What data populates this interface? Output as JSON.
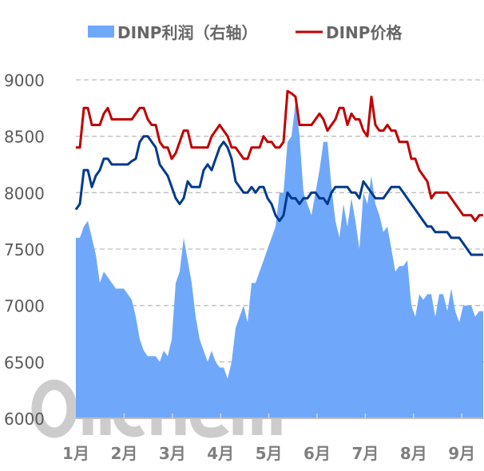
{
  "chart_data": {
    "type": "line",
    "title": "",
    "watermark": "oilchem",
    "legend": {
      "placement": "top-center",
      "entries": [
        {
          "label": "DINP利润（右轴）",
          "type": "area",
          "color": "#6FA8FA"
        },
        {
          "label": "DINP价格",
          "type": "line",
          "color": "#C00000"
        }
      ]
    },
    "xlabel": "",
    "ylabel": "",
    "x_tick_labels": [
      "1月",
      "2月",
      "3月",
      "4月",
      "5月",
      "6月",
      "7月",
      "8月",
      "9月"
    ],
    "x_range_months": [
      1,
      9.45
    ],
    "y_tick_labels": [
      "9000",
      "8500",
      "8000",
      "7500",
      "7000",
      "6500",
      "6000"
    ],
    "ylim": [
      6000,
      9000
    ],
    "grid": "horizontal-dashed",
    "right_axis_visible": false,
    "series": [
      {
        "name": "DINP利润（右轴）",
        "type": "area",
        "color": "#6FA8FA",
        "note_values_on_left_scale": true,
        "values": [
          7600,
          7600,
          7700,
          7750,
          7600,
          7450,
          7200,
          7300,
          7250,
          7200,
          7150,
          7150,
          7150,
          7100,
          7050,
          6900,
          6700,
          6600,
          6550,
          6550,
          6550,
          6500,
          6600,
          6550,
          6700,
          7200,
          7300,
          7600,
          7400,
          7200,
          6900,
          6700,
          6600,
          6500,
          6600,
          6500,
          6450,
          6450,
          6350,
          6500,
          6800,
          6900,
          7000,
          6850,
          7200,
          7200,
          7300,
          7400,
          7500,
          7600,
          7700,
          8000,
          8000,
          8450,
          8500,
          8800,
          8500,
          8000,
          7900,
          7800,
          8000,
          8200,
          8450,
          8450,
          8050,
          7750,
          7600,
          7900,
          7700,
          7950,
          7750,
          7500,
          8000,
          7900,
          8150,
          7900,
          7800,
          7650,
          7700,
          7500,
          7300,
          7350,
          7350,
          7400,
          7000,
          6900,
          7100,
          7050,
          7100,
          7100,
          6900,
          7100,
          7100,
          6950,
          7150,
          6950,
          6850,
          7000,
          7000,
          7000,
          6900,
          6950,
          6950
        ]
      },
      {
        "name": "DINP价格",
        "type": "line",
        "color": "#C00000",
        "values": [
          8400,
          8400,
          8750,
          8750,
          8600,
          8600,
          8600,
          8700,
          8750,
          8650,
          8650,
          8650,
          8650,
          8650,
          8650,
          8700,
          8750,
          8750,
          8650,
          8600,
          8600,
          8450,
          8400,
          8400,
          8300,
          8350,
          8450,
          8550,
          8550,
          8400,
          8400,
          8400,
          8400,
          8400,
          8500,
          8550,
          8600,
          8550,
          8500,
          8400,
          8400,
          8350,
          8300,
          8300,
          8400,
          8400,
          8400,
          8500,
          8450,
          8450,
          8400,
          8400,
          8450,
          8900,
          8880,
          8850,
          8600,
          8600,
          8600,
          8600,
          8650,
          8700,
          8650,
          8550,
          8600,
          8650,
          8750,
          8750,
          8600,
          8700,
          8650,
          8650,
          8550,
          8500,
          8850,
          8600,
          8550,
          8550,
          8600,
          8550,
          8550,
          8450,
          8450,
          8450,
          8300,
          8300,
          8200,
          8150,
          8100,
          7950,
          8000,
          8000,
          8000,
          8000,
          7950,
          7900,
          7850,
          7800,
          7800,
          7800,
          7750,
          7800,
          7800
        ]
      },
      {
        "name": "",
        "type": "line",
        "color": "#003A8C",
        "values": [
          7850,
          7900,
          8200,
          8200,
          8050,
          8150,
          8200,
          8300,
          8300,
          8250,
          8250,
          8250,
          8250,
          8250,
          8280,
          8300,
          8450,
          8500,
          8500,
          8450,
          8400,
          8250,
          8200,
          8150,
          8050,
          7950,
          7900,
          7950,
          8100,
          8050,
          8050,
          8050,
          8200,
          8250,
          8200,
          8300,
          8400,
          8450,
          8400,
          8300,
          8100,
          8050,
          8000,
          8000,
          8050,
          8000,
          8050,
          8050,
          7950,
          7900,
          7800,
          7750,
          7800,
          8000,
          7950,
          7950,
          7900,
          7950,
          7950,
          8000,
          8000,
          7950,
          7950,
          7900,
          8000,
          8050,
          8050,
          8050,
          8050,
          8000,
          8000,
          7950,
          8100,
          8050,
          8000,
          7950,
          7950,
          7950,
          8000,
          8050,
          8050,
          8050,
          8000,
          7950,
          7900,
          7850,
          7800,
          7750,
          7700,
          7700,
          7650,
          7650,
          7650,
          7650,
          7600,
          7600,
          7600,
          7550,
          7500,
          7450,
          7450,
          7450,
          7450
        ]
      }
    ]
  }
}
